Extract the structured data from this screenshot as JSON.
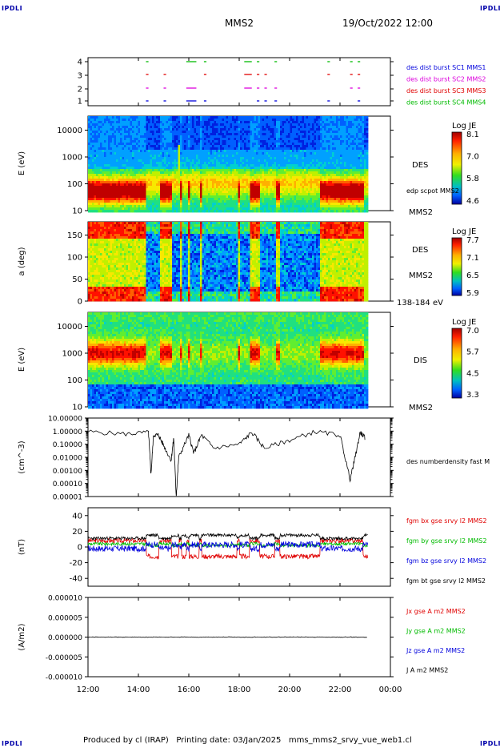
{
  "corners": {
    "tl": "IPDLI",
    "tr": "IPDLI",
    "bl": "IPDLI",
    "br": "IPDLI"
  },
  "header": {
    "spacecraft": "MMS2",
    "date": "19/Oct/2022 12:00"
  },
  "footer": {
    "text": "Produced by cl (IRAP)   Printing date: 03/Jan/2025   mms_mms2_srvy_vue_web1.cl"
  },
  "time_axis": {
    "ticks": [
      "12:00",
      "14:00",
      "16:00",
      "18:00",
      "20:00",
      "22:00",
      "00:00"
    ]
  },
  "colors": {
    "red": "#e00000",
    "green": "#00bb00",
    "blue": "#0000dd",
    "magenta": "#dd00dd",
    "black": "#000000"
  },
  "chart_data": [
    {
      "type": "scatter",
      "panel": "burst",
      "yticks": [
        "1",
        "2",
        "3",
        "4"
      ],
      "legend": [
        {
          "text": "des dist burst SC1 MMS1",
          "color": "#0000dd"
        },
        {
          "text": "des dist burst SC2 MMS2",
          "color": "#dd00dd"
        },
        {
          "text": "des dist burst SC3 MMS3",
          "color": "#e00000"
        },
        {
          "text": "des dist burst SC4 MMS4",
          "color": "#00bb00"
        }
      ],
      "segments_hours": [
        [
          14.3,
          14.4
        ],
        [
          15.0,
          15.1
        ],
        [
          15.9,
          16.3
        ],
        [
          16.6,
          16.7
        ],
        [
          18.2,
          18.5
        ],
        [
          18.7,
          18.8
        ],
        [
          19.0,
          19.1
        ],
        [
          19.4,
          19.5
        ],
        [
          21.5,
          21.6
        ],
        [
          22.4,
          22.5
        ],
        [
          22.7,
          22.8
        ]
      ]
    },
    {
      "type": "heatmap",
      "panel": "des_energy",
      "ylabel": "E (eV)",
      "yticks": [
        "10",
        "100",
        "1000",
        "10000"
      ],
      "right_labels": [
        "DES",
        "edp scpot MMS2",
        "MMS2"
      ],
      "colorbar": {
        "title": "Log JE",
        "ticks": [
          "8.1",
          "7.0",
          "5.8",
          "4.6"
        ]
      }
    },
    {
      "type": "heatmap",
      "panel": "des_pitch",
      "ylabel": "a (deg)",
      "yticks": [
        "0",
        "50",
        "100",
        "150"
      ],
      "right_labels": [
        "DES",
        "MMS2",
        "138-184 eV"
      ],
      "colorbar": {
        "title": "Log JE",
        "ticks": [
          "7.7",
          "7.1",
          "6.5",
          "5.9"
        ]
      }
    },
    {
      "type": "heatmap",
      "panel": "dis_energy",
      "ylabel": "E (eV)",
      "yticks": [
        "10",
        "100",
        "1000",
        "10000"
      ],
      "right_labels": [
        "DIS",
        "MMS2"
      ],
      "colorbar": {
        "title": "Log JE",
        "ticks": [
          "7.0",
          "5.7",
          "4.5",
          "3.3"
        ]
      }
    },
    {
      "type": "line",
      "panel": "density",
      "ylabel": "(cm^-3)",
      "yticks": [
        "0.00001",
        "0.00010",
        "0.00100",
        "0.01000",
        "0.10000",
        "1.00000",
        "10.00000"
      ],
      "legend": [
        {
          "text": "des numberdensity fast M",
          "color": "#000000"
        }
      ],
      "x_hours": [
        12.0,
        13.5,
        14.4,
        14.5,
        14.6,
        14.8,
        15.0,
        15.3,
        15.4,
        15.5,
        15.6,
        16.0,
        16.2,
        16.5,
        17.0,
        18.0,
        18.5,
        19.0,
        20.0,
        21.0,
        22.0,
        22.4,
        22.6,
        22.8,
        23.0
      ],
      "y_values": [
        0.9,
        0.6,
        0.8,
        0.0005,
        0.5,
        0.5,
        0.08,
        0.006,
        0.3,
        1e-05,
        0.01,
        0.5,
        0.02,
        0.5,
        0.05,
        0.1,
        0.8,
        0.05,
        0.2,
        0.9,
        0.5,
        0.0002,
        0.01,
        0.8,
        0.3
      ]
    },
    {
      "type": "line",
      "panel": "bfield",
      "ylabel": "(nT)",
      "yticks": [
        "-40",
        "-20",
        "0",
        "20",
        "40"
      ],
      "ylim": [
        -50,
        50
      ],
      "legend": [
        {
          "text": "fgm bx gse srvy l2 MMS2",
          "color": "#e00000"
        },
        {
          "text": "fgm by gse srvy l2 MMS2",
          "color": "#00bb00"
        },
        {
          "text": "fgm bz gse srvy l2 MMS2",
          "color": "#0000dd"
        },
        {
          "text": "fgm bt gse srvy l2 MMS2",
          "color": "#000000"
        }
      ]
    },
    {
      "type": "line",
      "panel": "current",
      "ylabel": "(A/m2)",
      "yticks": [
        "-0.000010",
        "-0.000005",
        "0.000000",
        "0.000005",
        "0.000010"
      ],
      "ylim": [
        -1e-05,
        1e-05
      ],
      "legend": [
        {
          "text": "Jx gse A m2 MMS2",
          "color": "#e00000"
        },
        {
          "text": "Jy gse A m2 MMS2",
          "color": "#00bb00"
        },
        {
          "text": "Jz gse A m2 MMS2",
          "color": "#0000dd"
        },
        {
          "text": "J A m2 MMS2",
          "color": "#000000"
        }
      ]
    }
  ]
}
